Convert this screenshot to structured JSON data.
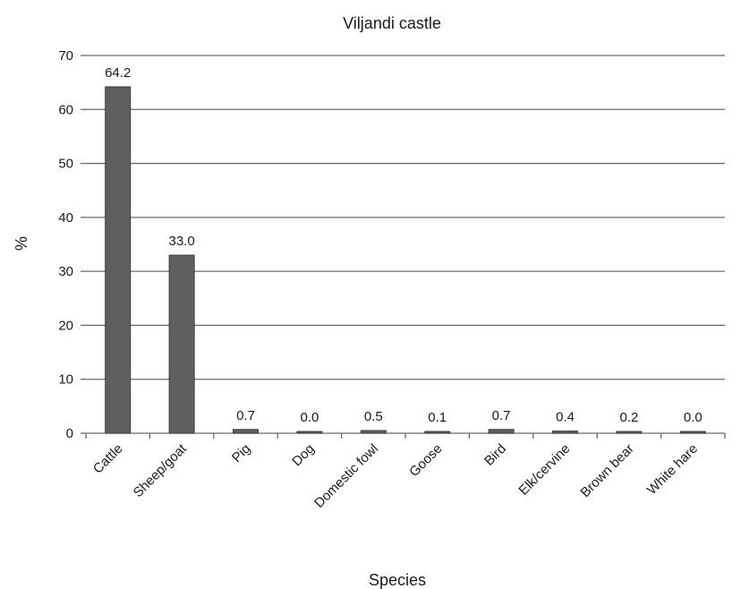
{
  "chart_data": {
    "type": "bar",
    "title": "Viljandi castle",
    "xlabel": "Species",
    "ylabel": "%",
    "ylim": [
      0,
      70
    ],
    "yticks": [
      0,
      10,
      20,
      30,
      40,
      50,
      60,
      70
    ],
    "grid": true,
    "categories": [
      "Cattle",
      "Sheep/goat",
      "Pig",
      "Dog",
      "Domestic fowl",
      "Goose",
      "Bird",
      "Elk/cervine",
      "Brown bear",
      "White hare"
    ],
    "values": [
      64.2,
      33.0,
      0.7,
      0.0,
      0.5,
      0.1,
      0.7,
      0.4,
      0.2,
      0.0
    ],
    "data_labels": [
      "64.2",
      "33.0",
      "0.7",
      "0.0",
      "0.5",
      "0.1",
      "0.7",
      "0.4",
      "0.2",
      "0.0"
    ],
    "colors": {
      "bar": "#5f5f5f",
      "bar_edge": "#3c3c3c",
      "grid": "#6b6b6b",
      "axis": "#6b6b6b",
      "text": "#1a1a1a"
    }
  }
}
